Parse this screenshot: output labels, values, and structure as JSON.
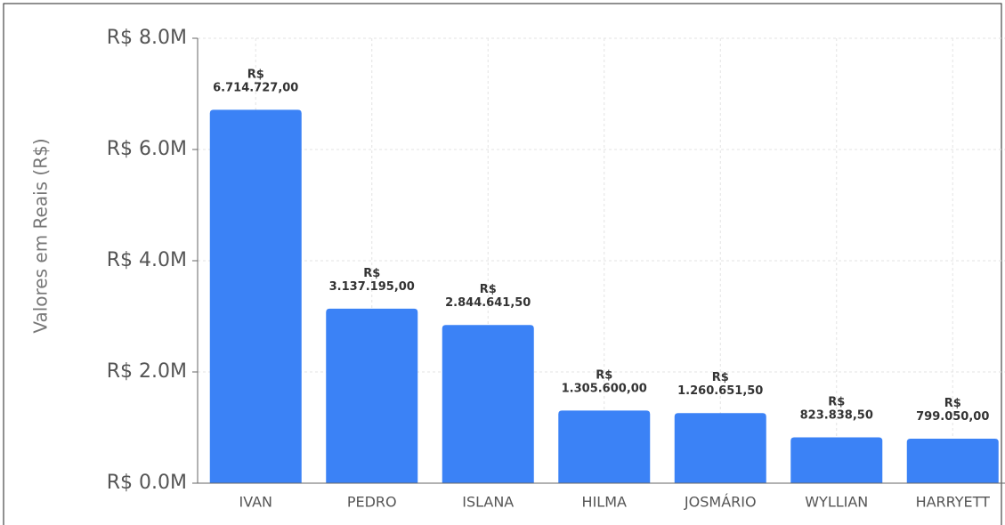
{
  "chart_data": {
    "type": "bar",
    "y_axis_label": "Valores em Reais (R$)",
    "categories": [
      "IVAN",
      "PEDRO",
      "ISLANA",
      "HILMA",
      "JOSMÁRIO",
      "WYLLIAN",
      "HARRYETT"
    ],
    "values": [
      6714727,
      3137195,
      2844641.5,
      1305600,
      1260651.5,
      823838.5,
      799050
    ],
    "value_labels": [
      "R$ 6.714.727,00",
      "R$ 3.137.195,00",
      "R$ 2.844.641,50",
      "R$ 1.305.600,00",
      "R$ 1.260.651,50",
      "R$ 823.838,50",
      "R$ 799.050,00"
    ],
    "color": "#3b82f6",
    "ylim": [
      0,
      8000000
    ],
    "yticks": [
      {
        "value": 0,
        "label": "R$ 0.0M"
      },
      {
        "value": 2000000,
        "label": "R$ 2.0M"
      },
      {
        "value": 4000000,
        "label": "R$ 4.0M"
      },
      {
        "value": 6000000,
        "label": "R$ 6.0M"
      },
      {
        "value": 8000000,
        "label": "R$ 8.0M"
      }
    ],
    "grid": true
  }
}
